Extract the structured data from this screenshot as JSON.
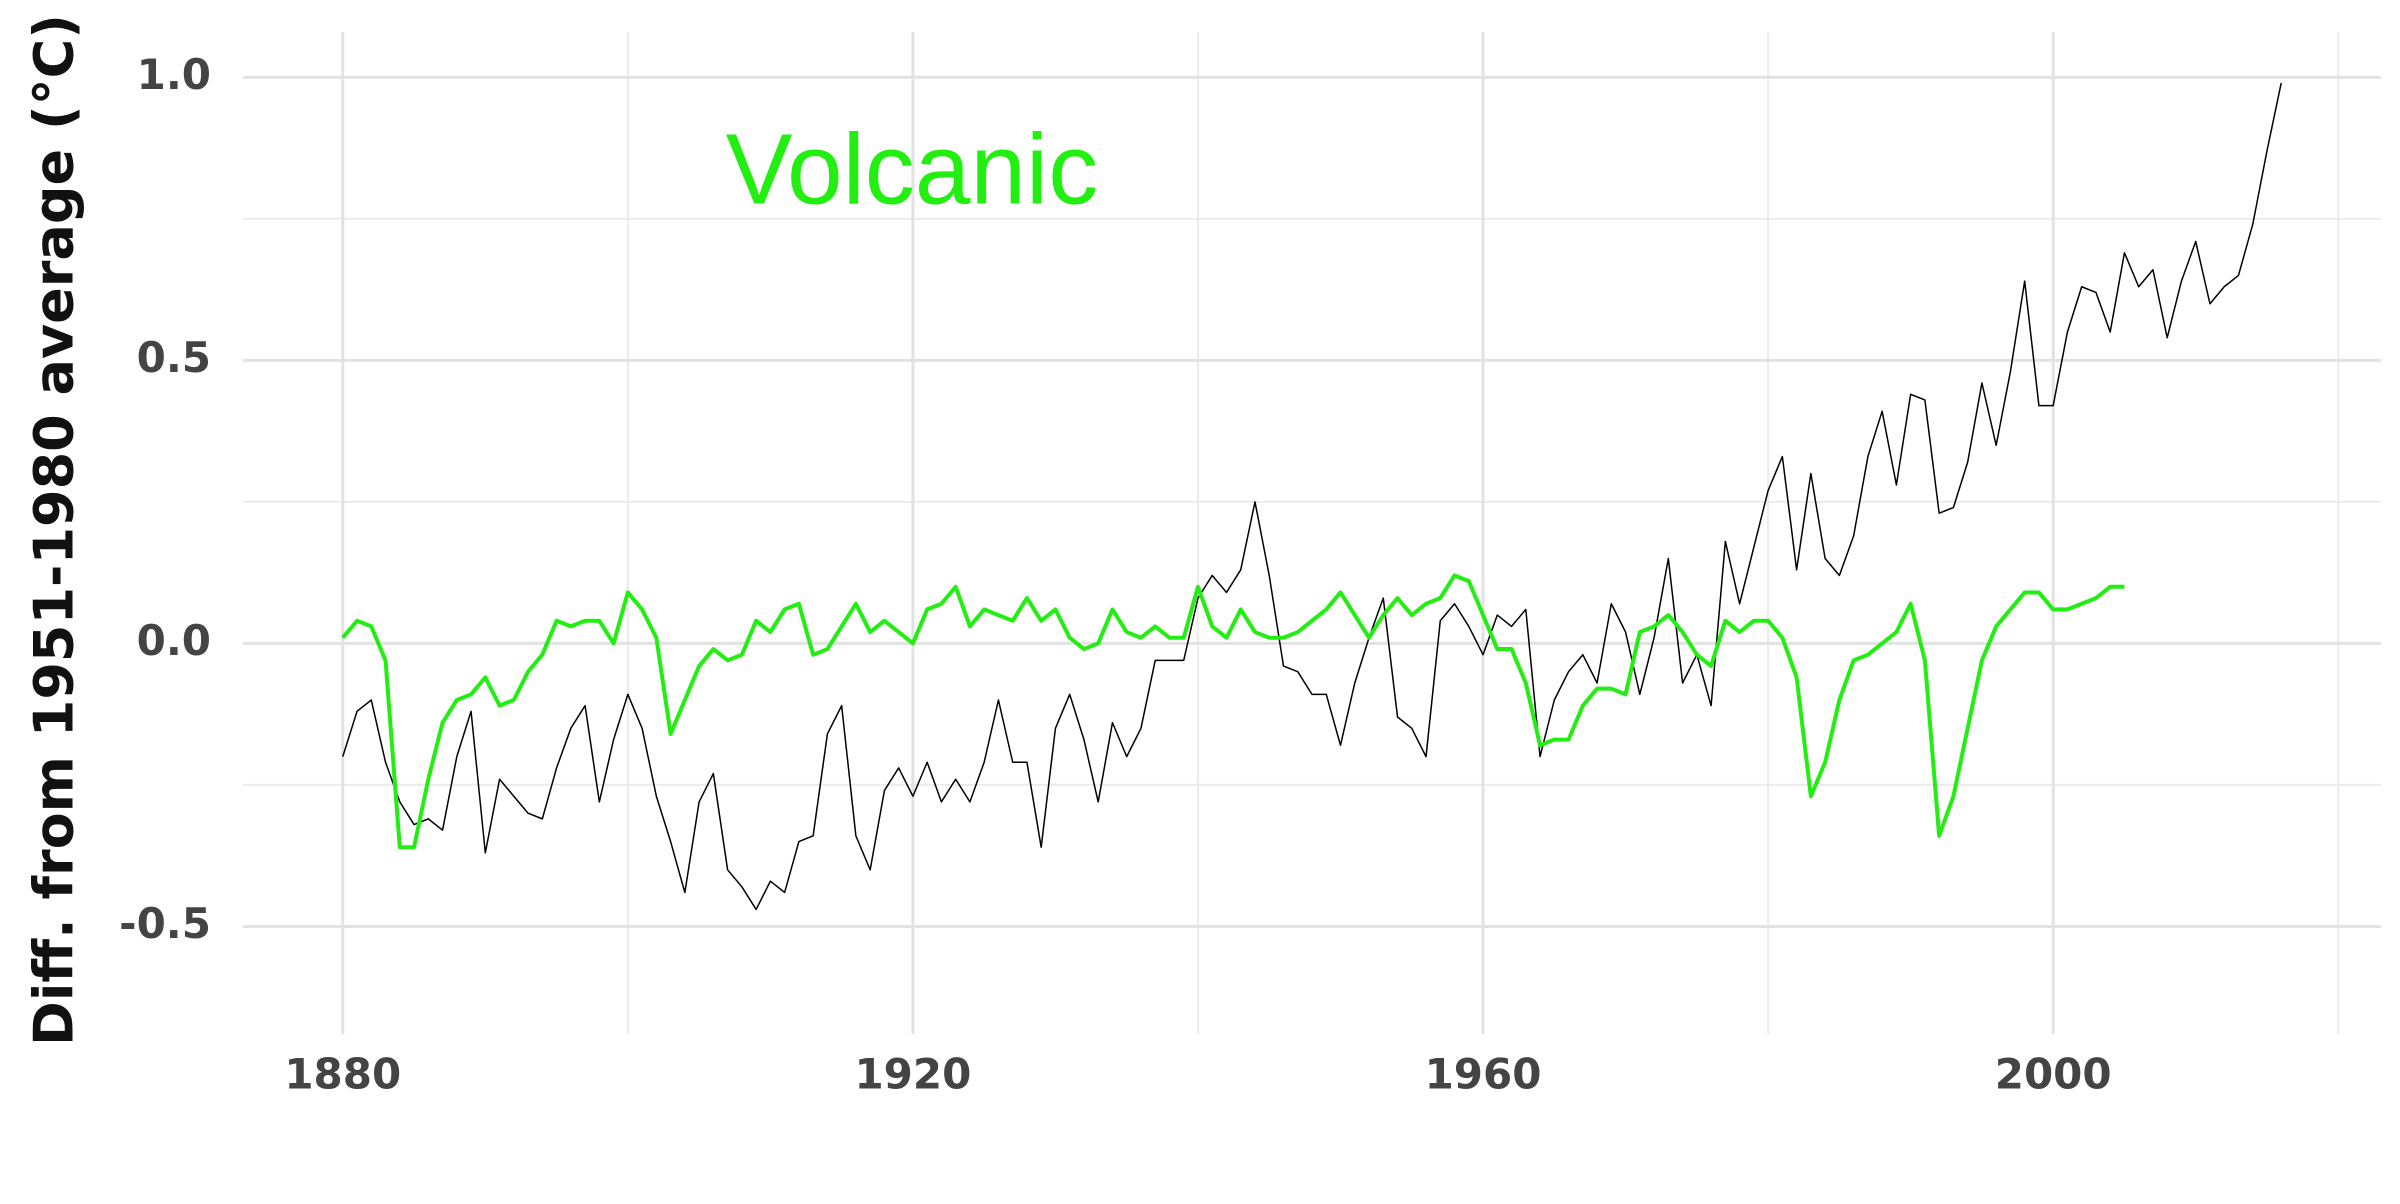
{
  "chart_data": {
    "type": "line",
    "y_label": "Diff. from 1951-1980 average (°C)",
    "annotations": [
      {
        "text": "Volcanic",
        "color": "#22ee11"
      }
    ],
    "x": [
      1880,
      1881,
      1882,
      1883,
      1884,
      1885,
      1886,
      1887,
      1888,
      1889,
      1890,
      1891,
      1892,
      1893,
      1894,
      1895,
      1896,
      1897,
      1898,
      1899,
      1900,
      1901,
      1902,
      1903,
      1904,
      1905,
      1906,
      1907,
      1908,
      1909,
      1910,
      1911,
      1912,
      1913,
      1914,
      1915,
      1916,
      1917,
      1918,
      1919,
      1920,
      1921,
      1922,
      1923,
      1924,
      1925,
      1926,
      1927,
      1928,
      1929,
      1930,
      1931,
      1932,
      1933,
      1934,
      1935,
      1936,
      1937,
      1938,
      1939,
      1940,
      1941,
      1942,
      1943,
      1944,
      1945,
      1946,
      1947,
      1948,
      1949,
      1950,
      1951,
      1952,
      1953,
      1954,
      1955,
      1956,
      1957,
      1958,
      1959,
      1960,
      1961,
      1962,
      1963,
      1964,
      1965,
      1966,
      1967,
      1968,
      1969,
      1970,
      1971,
      1972,
      1973,
      1974,
      1975,
      1976,
      1977,
      1978,
      1979,
      1980,
      1981,
      1982,
      1983,
      1984,
      1985,
      1986,
      1987,
      1988,
      1989,
      1990,
      1991,
      1992,
      1993,
      1994,
      1995,
      1996,
      1997,
      1998,
      1999,
      2000,
      2001,
      2002,
      2003,
      2004,
      2005,
      2006,
      2007,
      2008,
      2009,
      2010,
      2011,
      2012,
      2013,
      2014,
      2015,
      2016
    ],
    "series": [
      {
        "color": "#000000",
        "width": 1.5,
        "values": [
          -0.2,
          -0.12,
          -0.1,
          -0.21,
          -0.28,
          -0.32,
          -0.31,
          -0.33,
          -0.2,
          -0.12,
          -0.37,
          -0.24,
          -0.27,
          -0.3,
          -0.31,
          -0.22,
          -0.15,
          -0.11,
          -0.28,
          -0.17,
          -0.09,
          -0.15,
          -0.27,
          -0.35,
          -0.44,
          -0.28,
          -0.23,
          -0.4,
          -0.43,
          -0.47,
          -0.42,
          -0.44,
          -0.35,
          -0.34,
          -0.16,
          -0.11,
          -0.34,
          -0.4,
          -0.26,
          -0.22,
          -0.27,
          -0.21,
          -0.28,
          -0.24,
          -0.28,
          -0.21,
          -0.1,
          -0.21,
          -0.21,
          -0.36,
          -0.15,
          -0.09,
          -0.17,
          -0.28,
          -0.14,
          -0.2,
          -0.15,
          -0.03,
          -0.03,
          -0.03,
          0.08,
          0.12,
          0.09,
          0.13,
          0.25,
          0.12,
          -0.04,
          -0.05,
          -0.09,
          -0.09,
          -0.18,
          -0.07,
          0.01,
          0.08,
          -0.13,
          -0.15,
          -0.2,
          0.04,
          0.07,
          0.03,
          -0.02,
          0.05,
          0.03,
          0.06,
          -0.2,
          -0.1,
          -0.05,
          -0.02,
          -0.07,
          0.07,
          0.02,
          -0.09,
          0.01,
          0.15,
          -0.07,
          -0.02,
          -0.11,
          0.18,
          0.07,
          0.17,
          0.27,
          0.33,
          0.13,
          0.3,
          0.15,
          0.12,
          0.19,
          0.33,
          0.41,
          0.28,
          0.44,
          0.43,
          0.23,
          0.24,
          0.32,
          0.46,
          0.35,
          0.48,
          0.64,
          0.42,
          0.42,
          0.55,
          0.63,
          0.62,
          0.55,
          0.69,
          0.63,
          0.66,
          0.54,
          0.64,
          0.71,
          0.6,
          0.63,
          0.65,
          0.74,
          0.87,
          0.99
        ]
      },
      {
        "color": "#22ee11",
        "width": 4,
        "values": [
          0.01,
          0.04,
          0.03,
          -0.03,
          -0.36,
          -0.36,
          -0.24,
          -0.14,
          -0.1,
          -0.09,
          -0.06,
          -0.11,
          -0.1,
          -0.05,
          -0.02,
          0.04,
          0.03,
          0.04,
          0.04,
          0.0,
          0.09,
          0.06,
          0.01,
          -0.16,
          -0.1,
          -0.04,
          -0.01,
          -0.03,
          -0.02,
          0.04,
          0.02,
          0.06,
          0.07,
          -0.02,
          -0.01,
          0.03,
          0.07,
          0.02,
          0.04,
          0.02,
          0.0,
          0.06,
          0.07,
          0.1,
          0.03,
          0.06,
          0.05,
          0.04,
          0.08,
          0.04,
          0.06,
          0.01,
          -0.01,
          0.0,
          0.06,
          0.02,
          0.01,
          0.03,
          0.01,
          0.01,
          0.1,
          0.03,
          0.01,
          0.06,
          0.02,
          0.01,
          0.01,
          0.02,
          0.04,
          0.06,
          0.09,
          0.05,
          0.01,
          0.05,
          0.08,
          0.05,
          0.07,
          0.08,
          0.12,
          0.11,
          0.05,
          -0.01,
          -0.01,
          -0.07,
          -0.18,
          -0.17,
          -0.17,
          -0.11,
          -0.08,
          -0.08,
          -0.09,
          0.02,
          0.03,
          0.05,
          0.02,
          -0.02,
          -0.04,
          0.04,
          0.02,
          0.04,
          0.04,
          0.01,
          -0.06,
          -0.27,
          -0.21,
          -0.1,
          -0.03,
          -0.02,
          0.0,
          0.02,
          0.07,
          -0.03,
          -0.34,
          -0.27,
          -0.15,
          -0.03,
          0.03,
          0.06,
          0.09,
          0.09,
          0.06,
          0.06,
          0.07,
          0.08,
          0.1,
          0.1,
          null,
          null,
          null,
          null,
          null,
          null,
          null,
          null,
          null,
          null,
          null
        ]
      }
    ],
    "xlim": [
      1873,
      2023
    ],
    "ylim": [
      -0.69,
      1.08
    ],
    "xticks": [
      1880,
      1920,
      1960,
      2000
    ],
    "yticks": [
      {
        "value": -0.5,
        "label": "-0.5"
      },
      {
        "value": 0,
        "label": "0.0"
      },
      {
        "value": 0.5,
        "label": "0.5"
      },
      {
        "value": 1,
        "label": "1.0"
      }
    ],
    "grid": true,
    "minor_grid": true
  }
}
